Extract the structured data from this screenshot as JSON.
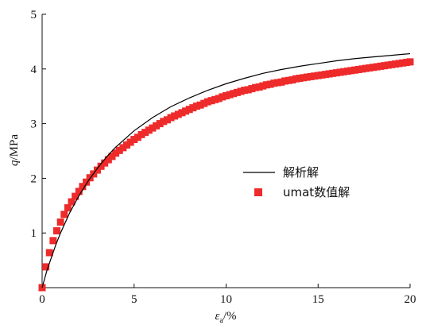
{
  "chart_data": {
    "type": "line",
    "xlabel_var": "ε",
    "xlabel_sub": "a",
    "xlabel_unit": "/%",
    "ylabel_var": "q",
    "ylabel_unit": "/MPa",
    "xlim": [
      0,
      20
    ],
    "ylim": [
      0,
      5
    ],
    "x_ticks": [
      0,
      5,
      10,
      15,
      20
    ],
    "y_ticks": [
      1,
      2,
      3,
      4,
      5
    ],
    "grid": false,
    "legend_position": "center-right",
    "series": [
      {
        "name": "解析解",
        "kind": "line",
        "color": "#000000",
        "x": [
          0,
          0.25,
          0.5,
          0.75,
          1,
          1.5,
          2,
          2.5,
          3,
          3.5,
          4,
          5,
          6,
          7,
          8,
          9,
          10,
          11,
          12,
          13,
          14,
          15,
          16,
          17,
          18,
          19,
          20
        ],
        "y": [
          0,
          0.3,
          0.55,
          0.79,
          1.0,
          1.37,
          1.68,
          1.95,
          2.18,
          2.39,
          2.57,
          2.87,
          3.11,
          3.31,
          3.47,
          3.61,
          3.73,
          3.83,
          3.92,
          3.99,
          4.05,
          4.1,
          4.15,
          4.19,
          4.22,
          4.25,
          4.28
        ]
      },
      {
        "name": "umat数值解",
        "kind": "scatter",
        "color": "#ee2b2b",
        "x": [
          0,
          0.2,
          0.4,
          0.6,
          0.8,
          1.0,
          1.2,
          1.4,
          1.6,
          1.8,
          2.0,
          2.2,
          2.4,
          2.6,
          2.8,
          3.0,
          3.2,
          3.4,
          3.6,
          3.8,
          4.0,
          4.2,
          4.4,
          4.6,
          4.8,
          5.0,
          5.2,
          5.4,
          5.6,
          5.8,
          6.0,
          6.2,
          6.4,
          6.6,
          6.8,
          7.0,
          7.2,
          7.4,
          7.6,
          7.8,
          8.0,
          8.2,
          8.4,
          8.6,
          8.8,
          9.0,
          9.2,
          9.4,
          9.6,
          9.8,
          10.0,
          10.2,
          10.4,
          10.6,
          10.8,
          11.0,
          11.2,
          11.4,
          11.6,
          11.8,
          12.0,
          12.2,
          12.4,
          12.6,
          12.8,
          13.0,
          13.2,
          13.4,
          13.6,
          13.8,
          14.0,
          14.2,
          14.4,
          14.6,
          14.8,
          15.0,
          15.2,
          15.4,
          15.6,
          15.8,
          16.0,
          16.2,
          16.4,
          16.6,
          16.8,
          17.0,
          17.2,
          17.4,
          17.6,
          17.8,
          18.0,
          18.2,
          18.4,
          18.6,
          18.8,
          19.0,
          19.2,
          19.4,
          19.6,
          19.8,
          20.0
        ],
        "y": [
          0.0,
          0.38,
          0.64,
          0.86,
          1.04,
          1.2,
          1.34,
          1.46,
          1.57,
          1.67,
          1.76,
          1.85,
          1.93,
          2.01,
          2.08,
          2.15,
          2.22,
          2.28,
          2.34,
          2.4,
          2.46,
          2.51,
          2.56,
          2.61,
          2.66,
          2.71,
          2.75,
          2.8,
          2.84,
          2.88,
          2.92,
          2.96,
          3.0,
          3.04,
          3.07,
          3.11,
          3.14,
          3.17,
          3.2,
          3.23,
          3.26,
          3.29,
          3.32,
          3.34,
          3.37,
          3.4,
          3.42,
          3.44,
          3.46,
          3.49,
          3.51,
          3.53,
          3.55,
          3.57,
          3.59,
          3.61,
          3.62,
          3.64,
          3.66,
          3.67,
          3.69,
          3.71,
          3.72,
          3.74,
          3.75,
          3.76,
          3.78,
          3.79,
          3.8,
          3.82,
          3.83,
          3.84,
          3.85,
          3.86,
          3.87,
          3.88,
          3.89,
          3.9,
          3.91,
          3.92,
          3.93,
          3.94,
          3.95,
          3.96,
          3.97,
          3.98,
          3.99,
          4.0,
          4.01,
          4.02,
          4.03,
          4.04,
          4.05,
          4.06,
          4.07,
          4.08,
          4.09,
          4.1,
          4.11,
          4.12,
          4.13
        ]
      }
    ]
  }
}
